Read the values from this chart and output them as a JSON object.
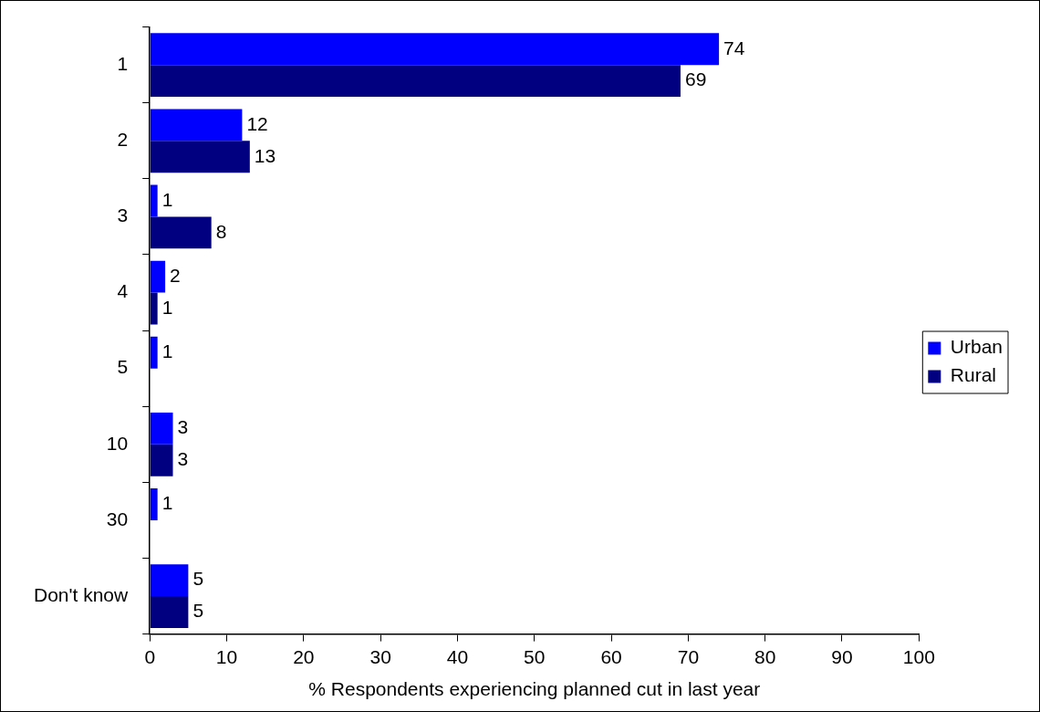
{
  "chart_data": {
    "type": "bar",
    "orientation": "horizontal",
    "xlabel": "% Respondents experiencing planned cut in last year",
    "categories": [
      "1",
      "2",
      "3",
      "4",
      "5",
      "10",
      "30",
      "Don't know"
    ],
    "series": [
      {
        "name": "Urban",
        "color": "#0000ff",
        "values": [
          74,
          12,
          1,
          2,
          1,
          3,
          1,
          5
        ]
      },
      {
        "name": "Rural",
        "color": "#000080",
        "values": [
          69,
          13,
          8,
          1,
          null,
          3,
          null,
          5
        ]
      }
    ],
    "xlim": [
      0,
      100
    ],
    "xticks": [
      0,
      10,
      20,
      30,
      40,
      50,
      60,
      70,
      80,
      90,
      100
    ],
    "grid": false,
    "legend": "right",
    "data_labels": true
  }
}
